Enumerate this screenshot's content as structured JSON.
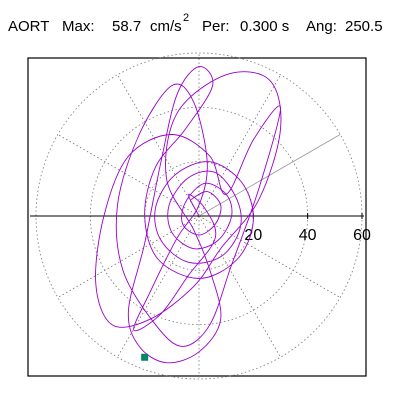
{
  "header": {
    "vessel": "AORT",
    "max_label": "Max:",
    "max_value": "58.7",
    "max_unit": "cm/s",
    "max_exp": "2",
    "per_label": "Per:",
    "per_value": "0.300 s",
    "ang_label": "Ang:",
    "ang_value": "250.5"
  },
  "chart_data": {
    "type": "polar-line",
    "title": "",
    "radial_ticks": [
      20,
      40,
      60
    ],
    "rlim": [
      0,
      60
    ],
    "angle_line_deg": 30,
    "grid": true,
    "series_color": "#9900cc",
    "marker_color": "#008866",
    "marker_point": [
      -20,
      -52
    ],
    "path_points": [
      [
        -3,
        6
      ],
      [
        3,
        9
      ],
      [
        8,
        4
      ],
      [
        6,
        -3
      ],
      [
        0,
        -7
      ],
      [
        -6,
        -3
      ],
      [
        -5,
        5
      ],
      [
        2,
        12
      ],
      [
        10,
        8
      ],
      [
        12,
        0
      ],
      [
        7,
        -9
      ],
      [
        -2,
        -12
      ],
      [
        -10,
        -6
      ],
      [
        -11,
        4
      ],
      [
        -4,
        14
      ],
      [
        6,
        16
      ],
      [
        14,
        6
      ],
      [
        15,
        -5
      ],
      [
        8,
        -15
      ],
      [
        -4,
        -17
      ],
      [
        -14,
        -9
      ],
      [
        -16,
        3
      ],
      [
        -9,
        15
      ],
      [
        4,
        20
      ],
      [
        16,
        12
      ],
      [
        20,
        -2
      ],
      [
        14,
        -16
      ],
      [
        0,
        -23
      ],
      [
        -15,
        -16
      ],
      [
        -20,
        0
      ],
      [
        -16,
        18
      ],
      [
        -5,
        32
      ],
      [
        5,
        48
      ],
      [
        0,
        55
      ],
      [
        -8,
        45
      ],
      [
        -14,
        20
      ],
      [
        -20,
        -10
      ],
      [
        -26,
        -35
      ],
      [
        -22,
        -48
      ],
      [
        -12,
        -54
      ],
      [
        0,
        -50
      ],
      [
        8,
        -38
      ],
      [
        4,
        -20
      ],
      [
        -2,
        -5
      ],
      [
        -12,
        14
      ],
      [
        -8,
        38
      ],
      [
        10,
        52
      ],
      [
        26,
        50
      ],
      [
        30,
        32
      ],
      [
        22,
        6
      ],
      [
        8,
        -12
      ],
      [
        -2,
        -26
      ],
      [
        -18,
        -38
      ],
      [
        -32,
        -40
      ],
      [
        -38,
        -25
      ],
      [
        -35,
        0
      ],
      [
        -26,
        22
      ],
      [
        -10,
        30
      ],
      [
        4,
        22
      ],
      [
        10,
        8
      ],
      [
        20,
        28
      ],
      [
        30,
        40
      ],
      [
        22,
        10
      ],
      [
        12,
        -18
      ],
      [
        4,
        -40
      ],
      [
        -6,
        -48
      ],
      [
        -16,
        -40
      ],
      [
        -28,
        -20
      ],
      [
        -30,
        4
      ],
      [
        -22,
        30
      ],
      [
        -10,
        48
      ],
      [
        -2,
        42
      ],
      [
        3,
        20
      ],
      [
        0,
        4
      ],
      [
        -8,
        -8
      ],
      [
        -18,
        -28
      ],
      [
        -24,
        -42
      ],
      [
        -14,
        -36
      ],
      [
        -4,
        -22
      ],
      [
        6,
        -8
      ],
      [
        2,
        3
      ],
      [
        -4,
        8
      ],
      [
        0,
        0
      ]
    ]
  }
}
